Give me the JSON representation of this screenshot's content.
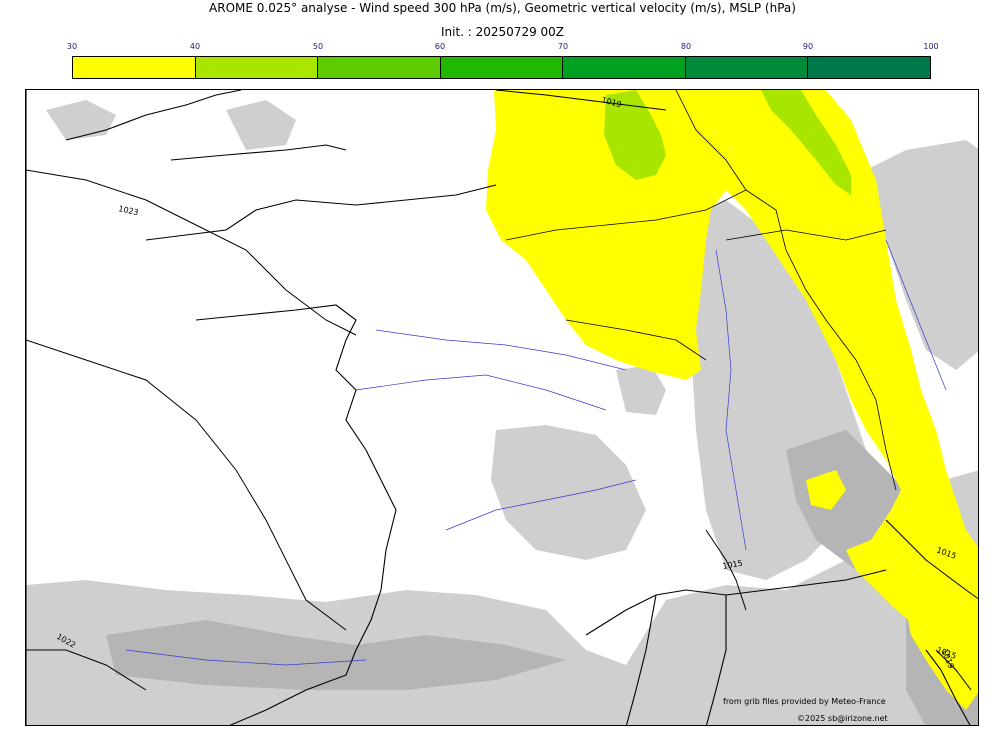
{
  "title_line1": "AROME 0.025° analyse - Wind speed 300 hPa (m/s), Geometric vertical velocity (m/s), MSLP (hPa)",
  "title_line2": "Init. : 20250729 00Z",
  "colorbar": {
    "ticks": [
      "30",
      "40",
      "50",
      "60",
      "70",
      "80",
      "90",
      "100"
    ],
    "colors": [
      "#ffff00",
      "#a8e600",
      "#5ccc00",
      "#22b800",
      "#00a020",
      "#008a3a",
      "#00784a"
    ]
  },
  "isobar_labels": [
    "1019",
    "1023",
    "1015",
    "1015",
    "1022",
    "1015",
    "1019"
  ],
  "credits": {
    "line1": "from grib files provided by Meteo-France",
    "line2": "©2025 sb@irizone.net"
  }
}
